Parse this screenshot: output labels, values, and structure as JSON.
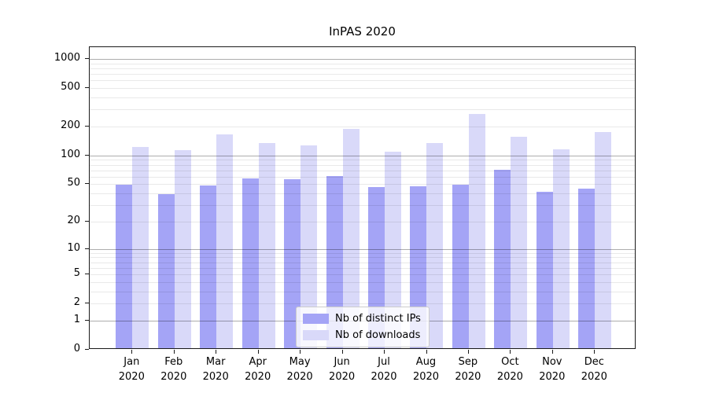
{
  "title": "InPAS 2020",
  "chart_data": {
    "type": "bar",
    "title": "InPAS 2020",
    "categories": [
      "Jan",
      "Feb",
      "Mar",
      "Apr",
      "May",
      "Jun",
      "Jul",
      "Aug",
      "Sep",
      "Oct",
      "Nov",
      "Dec"
    ],
    "year_label": "2020",
    "series": [
      {
        "name": "Nb of distinct IPs",
        "color": "#a4a4f6",
        "values": [
          48,
          38,
          47,
          55,
          54,
          59,
          45,
          46,
          48,
          68,
          40,
          43
        ]
      },
      {
        "name": "Nb of downloads",
        "color": "#d9d9f9",
        "values": [
          117,
          109,
          158,
          130,
          122,
          183,
          106,
          130,
          258,
          152,
          111,
          170
        ]
      }
    ],
    "yscale": "log1p",
    "yticks": [
      0,
      1,
      2,
      5,
      10,
      20,
      50,
      100,
      200,
      500,
      1000
    ],
    "major_gridline_values": [
      1,
      10,
      100,
      1000
    ],
    "minor_gridline_decades": [
      1,
      10,
      100
    ],
    "ylim": [
      0,
      1320
    ],
    "xlabel": "",
    "ylabel": "",
    "grid": true,
    "legend_position": "lower-center"
  },
  "legend": {
    "items": [
      "Nb of distinct IPs",
      "Nb of downloads"
    ]
  }
}
